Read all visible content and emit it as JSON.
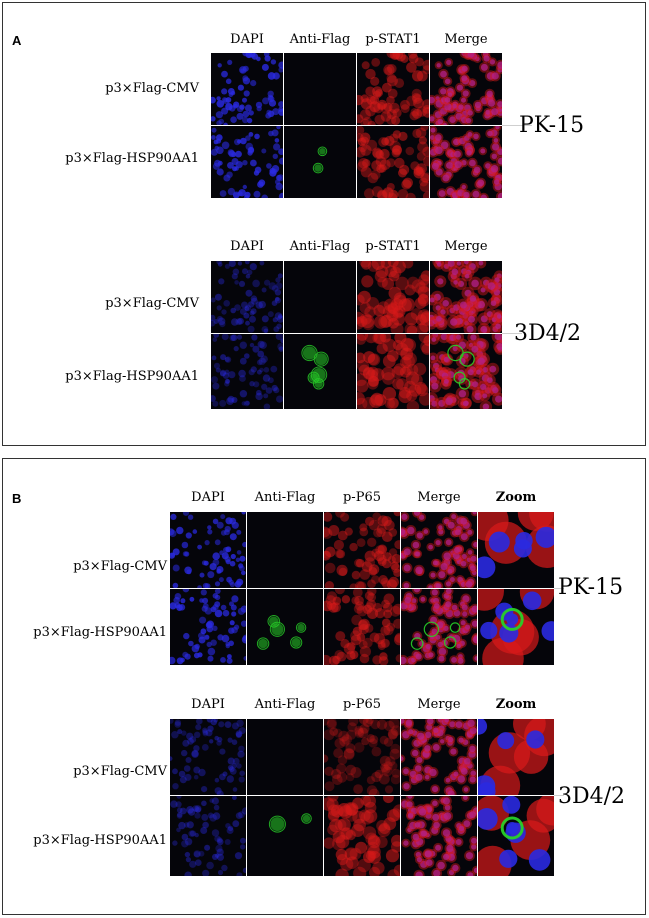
{
  "panels": [
    {
      "label": "A",
      "groups": [
        {
          "columns": [
            "DAPI",
            "Anti-Flag",
            "p-STAT1",
            "Merge"
          ],
          "rows": [
            "p3×Flag-CMV",
            "p3×Flag-HSP90AA1"
          ],
          "cell_line": "PK-15"
        },
        {
          "columns": [
            "DAPI",
            "Anti-Flag",
            "p-STAT1",
            "Merge"
          ],
          "rows": [
            "p3×Flag-CMV",
            "p3×Flag-HSP90AA1"
          ],
          "cell_line": "3D4/2"
        }
      ]
    },
    {
      "label": "B",
      "groups": [
        {
          "columns": [
            "DAPI",
            "Anti-Flag",
            "p-P65",
            "Merge",
            "Zoom"
          ],
          "rows": [
            "p3×Flag-CMV",
            "p3×Flag-HSP90AA1"
          ],
          "cell_line": "PK-15"
        },
        {
          "columns": [
            "DAPI",
            "Anti-Flag",
            "p-P65",
            "Merge",
            "Zoom"
          ],
          "rows": [
            "p3×Flag-CMV",
            "p3×Flag-HSP90AA1"
          ],
          "cell_line": "3D4/2"
        }
      ]
    }
  ],
  "image_colors": {
    "background": "#05050a",
    "dapi": "#2a2ae0",
    "flag": "#28d028",
    "stat": "#d81a1a",
    "merge_mix": "#b0208a"
  }
}
